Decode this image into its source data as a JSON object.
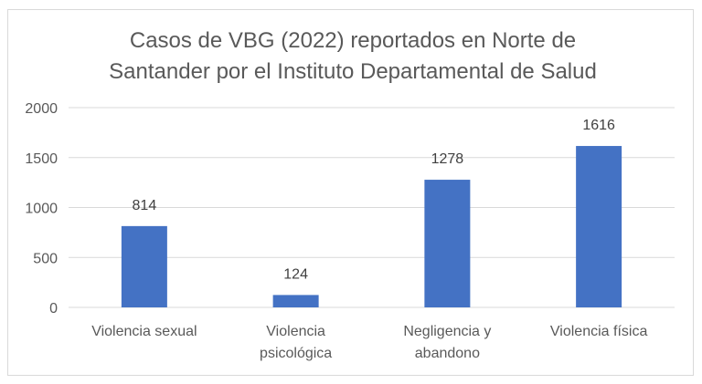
{
  "chart_data": {
    "type": "bar",
    "title_lines": [
      "Casos de VBG (2022) reportados en Norte de",
      "Santander por el Instituto Departamental de Salud"
    ],
    "categories": [
      [
        "Violencia sexual"
      ],
      [
        "Violencia",
        "psicológica"
      ],
      [
        "Negligencia y",
        "abandono"
      ],
      [
        "Violencia física"
      ]
    ],
    "values": [
      814,
      124,
      1278,
      1616
    ],
    "ylim": [
      0,
      2000
    ],
    "yticks": [
      0,
      500,
      1000,
      1500,
      2000
    ],
    "xlabel": "",
    "ylabel": "",
    "grid": true,
    "legend": "none",
    "bar_color": "#4472c4",
    "grid_color": "#d9d9d9",
    "text_color": "#595959"
  }
}
